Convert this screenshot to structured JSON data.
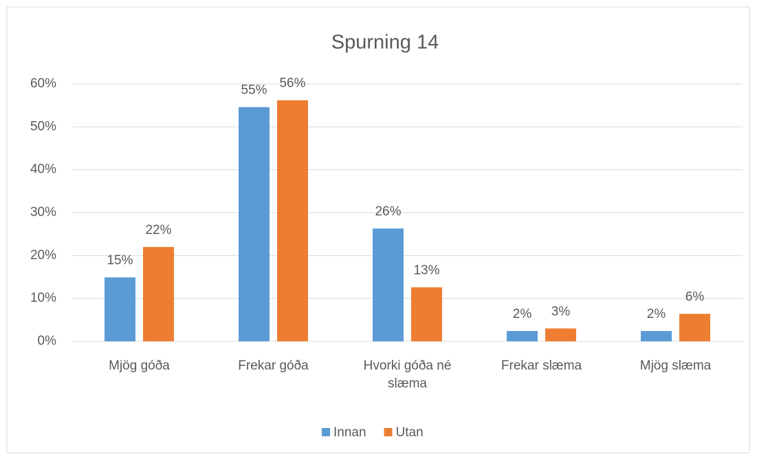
{
  "chart_data": {
    "type": "bar",
    "title": "Spurning 14",
    "categories": [
      "Mjög góða",
      "Frekar góða",
      "Hvorki góða né slæma",
      "Frekar slæma",
      "Mjög slæma"
    ],
    "series": [
      {
        "name": "Innan",
        "color": "#5b9bd5",
        "values": [
          14.9,
          54.6,
          26.3,
          2.4,
          2.4
        ],
        "value_labels": [
          "15%",
          "55%",
          "26%",
          "2%",
          "2%"
        ]
      },
      {
        "name": "Utan",
        "color": "#ed7d31",
        "values": [
          22.0,
          56.2,
          12.6,
          3.0,
          6.4
        ],
        "value_labels": [
          "22%",
          "56%",
          "13%",
          "3%",
          "6%"
        ]
      }
    ],
    "ylim": [
      0,
      60
    ],
    "yticks": [
      {
        "value": 0,
        "label": "0%"
      },
      {
        "value": 10,
        "label": "10%"
      },
      {
        "value": 20,
        "label": "20%"
      },
      {
        "value": 30,
        "label": "30%"
      },
      {
        "value": 40,
        "label": "40%"
      },
      {
        "value": 50,
        "label": "50%"
      },
      {
        "value": 60,
        "label": "60%"
      }
    ],
    "grid": true,
    "legend": "bottom"
  }
}
